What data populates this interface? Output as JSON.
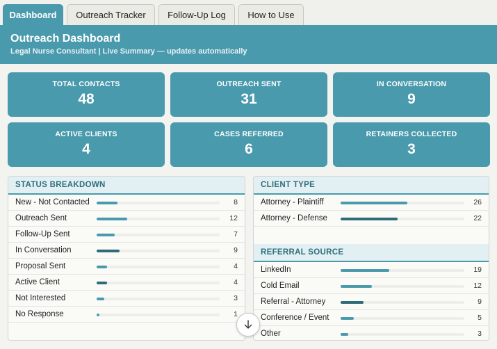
{
  "tabs": [
    {
      "label": "Dashboard",
      "active": true
    },
    {
      "label": "Outreach Tracker",
      "active": false
    },
    {
      "label": "Follow-Up Log",
      "active": false
    },
    {
      "label": "How to Use",
      "active": false
    }
  ],
  "header": {
    "title": "Outreach Dashboard",
    "subtitle": "Legal Nurse Consultant  |  Live Summary — updates automatically"
  },
  "kpis": [
    {
      "label": "TOTAL CONTACTS",
      "value": "48"
    },
    {
      "label": "OUTREACH SENT",
      "value": "31"
    },
    {
      "label": "IN CONVERSATION",
      "value": "9"
    },
    {
      "label": "ACTIVE CLIENTS",
      "value": "4"
    },
    {
      "label": "CASES REFERRED",
      "value": "6"
    },
    {
      "label": "RETAINERS COLLECTED",
      "value": "3"
    }
  ],
  "status_breakdown": {
    "title": "STATUS BREAKDOWN",
    "scale_max": 48,
    "rows": [
      {
        "label": "New - Not Contacted",
        "count": 8
      },
      {
        "label": "Outreach Sent",
        "count": 12
      },
      {
        "label": "Follow-Up Sent",
        "count": 7
      },
      {
        "label": "In Conversation",
        "count": 9,
        "dark": true
      },
      {
        "label": "Proposal Sent",
        "count": 4
      },
      {
        "label": "Active Client",
        "count": 4,
        "dark": true
      },
      {
        "label": "Not Interested",
        "count": 3
      },
      {
        "label": "No Response",
        "count": 1
      }
    ]
  },
  "client_type": {
    "title": "CLIENT TYPE",
    "scale_max": 48,
    "rows": [
      {
        "label": "Attorney - Plaintiff",
        "count": 26
      },
      {
        "label": "Attorney - Defense",
        "count": 22,
        "dark": true
      }
    ]
  },
  "referral_source": {
    "title": "REFERRAL SOURCE",
    "scale_max": 48,
    "rows": [
      {
        "label": "LinkedIn",
        "count": 19
      },
      {
        "label": "Cold Email",
        "count": 12
      },
      {
        "label": "Referral - Attorney",
        "count": 9,
        "dark": true
      },
      {
        "label": "Conference / Event",
        "count": 5
      },
      {
        "label": "Other",
        "count": 3
      }
    ]
  },
  "colors": {
    "accent": "#4a9aad",
    "accent_dark": "#2e6c78",
    "header_bg": "#e2eff3"
  },
  "icons": {
    "scroll": "arrow-down-icon"
  }
}
